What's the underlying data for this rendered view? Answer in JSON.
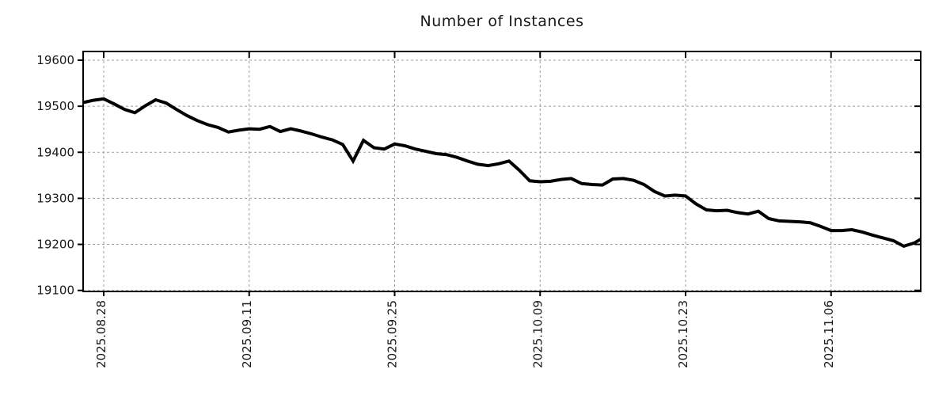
{
  "title": "Number of Instances",
  "colors": {
    "line": "#000000",
    "grid": "#9c9c9c",
    "border": "#000000",
    "background": "#ffffff",
    "text": "#1a1a1a"
  },
  "chart_data": {
    "type": "line",
    "title": "Number of Instances",
    "xlabel": "",
    "ylabel": "",
    "grid": true,
    "legend": "none",
    "ylim": [
      19100,
      19600
    ],
    "yticks": [
      19100,
      19200,
      19300,
      19400,
      19500,
      19600
    ],
    "xticks": [
      "2025.08.28",
      "2025.09.11",
      "2025.09.25",
      "2025.10.09",
      "2025.10.23",
      "2025.11.06"
    ],
    "x": [
      "2025.08.26",
      "2025.08.27",
      "2025.08.28",
      "2025.08.29",
      "2025.08.30",
      "2025.08.31",
      "2025.09.01",
      "2025.09.02",
      "2025.09.03",
      "2025.09.04",
      "2025.09.05",
      "2025.09.06",
      "2025.09.07",
      "2025.09.08",
      "2025.09.09",
      "2025.09.10",
      "2025.09.11",
      "2025.09.12",
      "2025.09.13",
      "2025.09.14",
      "2025.09.15",
      "2025.09.16",
      "2025.09.17",
      "2025.09.18",
      "2025.09.19",
      "2025.09.20",
      "2025.09.21",
      "2025.09.22",
      "2025.09.23",
      "2025.09.24",
      "2025.09.25",
      "2025.09.26",
      "2025.09.27",
      "2025.09.28",
      "2025.09.29",
      "2025.09.30",
      "2025.10.01",
      "2025.10.02",
      "2025.10.03",
      "2025.10.04",
      "2025.10.05",
      "2025.10.06",
      "2025.10.07",
      "2025.10.08",
      "2025.10.09",
      "2025.10.10",
      "2025.10.11",
      "2025.10.12",
      "2025.10.13",
      "2025.10.14",
      "2025.10.15",
      "2025.10.16",
      "2025.10.17",
      "2025.10.18",
      "2025.10.19",
      "2025.10.20",
      "2025.10.21",
      "2025.10.22",
      "2025.10.23",
      "2025.10.24",
      "2025.10.25",
      "2025.10.26",
      "2025.10.27",
      "2025.10.28",
      "2025.10.29",
      "2025.10.30",
      "2025.10.31",
      "2025.11.01",
      "2025.11.02",
      "2025.11.03",
      "2025.11.04",
      "2025.11.05",
      "2025.11.06",
      "2025.11.07",
      "2025.11.08",
      "2025.11.09",
      "2025.11.10",
      "2025.11.11",
      "2025.11.12",
      "2025.11.13",
      "2025.11.14",
      "2025.11.15"
    ],
    "series": [
      {
        "name": "Number of Instances",
        "values": [
          19508,
          19513,
          19516,
          19505,
          19493,
          19486,
          19501,
          19514,
          19507,
          19493,
          19480,
          19469,
          19460,
          19454,
          19444,
          19448,
          19451,
          19450,
          19456,
          19445,
          19451,
          19446,
          19440,
          19433,
          19427,
          19417,
          19381,
          19426,
          19410,
          19407,
          19418,
          19414,
          19407,
          19402,
          19397,
          19395,
          19389,
          19381,
          19374,
          19371,
          19375,
          19381,
          19361,
          19338,
          19336,
          19337,
          19341,
          19343,
          19332,
          19330,
          19329,
          19342,
          19343,
          19339,
          19330,
          19315,
          19305,
          19307,
          19305,
          19288,
          19275,
          19273,
          19274,
          19269,
          19266,
          19272,
          19256,
          19251,
          19250,
          19249,
          19247,
          19239,
          19230,
          19230,
          19232,
          19227,
          19220,
          19214,
          19208,
          19196,
          19203,
          19216
        ]
      }
    ]
  }
}
